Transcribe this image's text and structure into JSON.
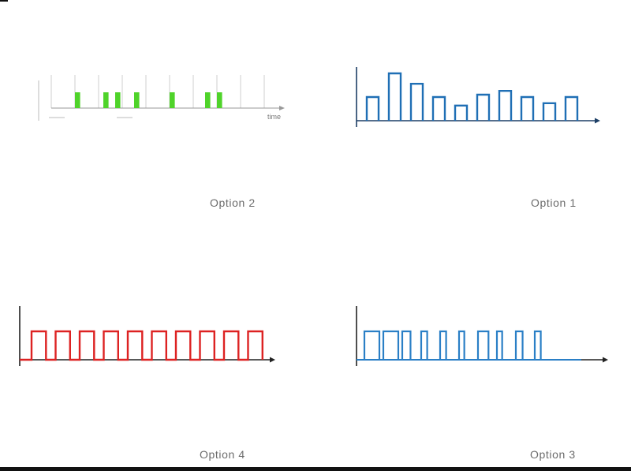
{
  "panels": {
    "option2": {
      "label": "Option 2",
      "x_axis_label": "time",
      "color": "#4fd32a",
      "pulse_starts": [
        1,
        2.2,
        2.7,
        3.5,
        5.0,
        6.5,
        7.0
      ],
      "pulse_width": 0.22,
      "grid_lines": [
        0,
        1,
        2,
        3,
        4,
        5,
        6,
        7,
        8,
        9
      ]
    },
    "option1": {
      "label": "Option 1",
      "color": "#1f6fb5",
      "bar_heights": [
        0.5,
        1.0,
        0.78,
        0.5,
        0.32,
        0.55,
        0.63,
        0.5,
        0.37,
        0.5
      ]
    },
    "option4": {
      "label": "Option 4",
      "color": "#dd2222",
      "pulse_count": 10,
      "duty_cycle": 0.6
    },
    "option3": {
      "label": "Option 3",
      "color": "#2a7fc6",
      "pulse_widths": [
        1.0,
        1.0,
        0.55,
        0.4,
        0.4,
        0.35,
        0.7,
        0.35,
        0.45,
        0.4
      ]
    }
  }
}
